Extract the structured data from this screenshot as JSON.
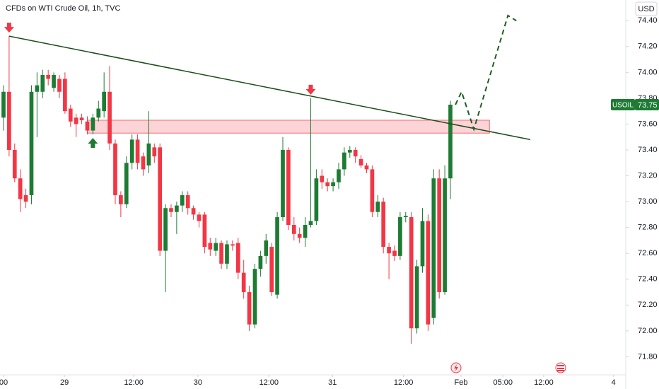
{
  "chart_data": {
    "type": "candlestick",
    "title": "CFDs on WTI Crude Oil, 1h, TVC",
    "currency": "USD",
    "symbol": "USOIL",
    "up_color": "#1e7b34",
    "down_color": "#f23645",
    "x": [
      0,
      1,
      2,
      3,
      4,
      5,
      6,
      7,
      8,
      9,
      10,
      11,
      12,
      13,
      14,
      15,
      16,
      17,
      18,
      19,
      20,
      21,
      22,
      23,
      24,
      25,
      26,
      27,
      28,
      29,
      30,
      31,
      32,
      33,
      34,
      35,
      36,
      37,
      38,
      39,
      40,
      41,
      42,
      43,
      44,
      45,
      46,
      47,
      48,
      49,
      50,
      51,
      52,
      53,
      54,
      55,
      56,
      57,
      58,
      59,
      60,
      61,
      62,
      63,
      64,
      65,
      66,
      67,
      68,
      69,
      70,
      71,
      72,
      73,
      74,
      75,
      76,
      77,
      78,
      79,
      80
    ],
    "open": [
      73.65,
      73.85,
      73.4,
      73.18,
      73.05,
      73.05,
      73.85,
      73.85,
      73.98,
      73.88,
      73.95,
      73.95,
      73.72,
      73.65,
      73.65,
      73.62,
      73.55,
      73.65,
      73.7,
      73.85,
      73.45,
      73.05,
      72.98,
      73.3,
      73.48,
      73.35,
      73.28,
      73.42,
      73.42,
      72.62,
      72.95,
      72.92,
      72.97,
      73.05,
      72.95,
      72.9,
      72.9,
      72.68,
      72.62,
      72.68,
      72.52,
      72.67,
      72.68,
      72.45,
      72.3,
      72.05,
      72.48,
      72.58,
      72.65,
      72.28,
      72.88,
      73.4,
      72.82,
      72.75,
      72.72,
      72.82,
      72.85,
      73.2,
      73.15,
      73.12,
      73.15,
      73.25,
      73.38,
      73.4,
      73.33,
      73.28,
      73.25,
      72.92,
      73.0,
      72.65,
      72.62,
      72.58,
      72.88,
      72.88,
      72.02,
      72.5,
      72.85,
      72.1,
      73.18,
      72.3,
      73.18
    ],
    "high": [
      73.9,
      74.28,
      73.45,
      73.25,
      73.1,
      73.9,
      74.0,
      74.02,
      74.02,
      74.0,
      73.98,
      74.0,
      73.75,
      73.68,
      73.68,
      73.66,
      73.68,
      73.78,
      74.0,
      74.05,
      73.48,
      73.08,
      73.35,
      73.52,
      73.52,
      73.38,
      73.7,
      73.45,
      73.45,
      72.98,
      72.98,
      73.0,
      73.08,
      73.08,
      72.97,
      72.92,
      72.92,
      72.72,
      72.72,
      72.7,
      72.7,
      72.7,
      72.72,
      72.55,
      72.35,
      72.52,
      72.62,
      72.75,
      72.68,
      72.92,
      73.5,
      73.42,
      72.88,
      72.8,
      72.88,
      73.8,
      73.25,
      73.25,
      73.18,
      73.18,
      73.3,
      73.42,
      73.43,
      73.42,
      73.36,
      73.3,
      73.28,
      73.05,
      73.03,
      72.68,
      72.66,
      72.92,
      72.92,
      72.92,
      72.55,
      72.95,
      72.9,
      73.25,
      73.25,
      73.28,
      73.78
    ],
    "low": [
      73.55,
      73.35,
      73.15,
      72.92,
      72.95,
      72.98,
      73.5,
      73.8,
      73.9,
      73.85,
      73.8,
      73.68,
      73.58,
      73.5,
      73.6,
      73.52,
      73.52,
      73.62,
      73.65,
      73.4,
      72.98,
      72.88,
      72.95,
      73.25,
      73.25,
      73.2,
      73.22,
      73.3,
      72.58,
      72.3,
      72.88,
      72.75,
      72.92,
      72.9,
      72.86,
      72.8,
      72.6,
      72.58,
      72.58,
      72.48,
      72.48,
      72.62,
      72.4,
      72.25,
      72.0,
      72.02,
      72.42,
      72.52,
      72.27,
      72.25,
      72.85,
      72.78,
      72.7,
      72.68,
      72.65,
      72.8,
      72.82,
      73.1,
      73.08,
      73.08,
      73.1,
      73.2,
      73.34,
      73.3,
      73.26,
      73.22,
      72.88,
      72.88,
      72.6,
      72.4,
      72.54,
      72.55,
      72.84,
      71.9,
      71.98,
      72.45,
      72.0,
      72.05,
      72.25,
      72.28,
      73.02
    ],
    "close": [
      73.85,
      73.4,
      73.18,
      73.02,
      73.0,
      73.85,
      73.9,
      73.98,
      73.95,
      73.98,
      73.85,
      73.7,
      73.62,
      73.6,
      73.63,
      73.55,
      73.65,
      73.72,
      73.85,
      73.45,
      73.05,
      72.98,
      73.3,
      73.48,
      73.3,
      73.25,
      73.45,
      73.35,
      72.62,
      72.95,
      72.92,
      72.97,
      73.05,
      72.95,
      72.9,
      72.85,
      72.65,
      72.63,
      72.68,
      72.52,
      72.67,
      72.66,
      72.45,
      72.3,
      72.05,
      72.48,
      72.58,
      72.7,
      72.3,
      72.88,
      73.4,
      72.82,
      72.75,
      72.72,
      72.82,
      72.85,
      73.18,
      73.15,
      73.12,
      73.15,
      73.25,
      73.38,
      73.4,
      73.35,
      73.28,
      73.25,
      72.92,
      73.0,
      72.65,
      72.6,
      72.58,
      72.88,
      72.89,
      72.02,
      72.5,
      72.85,
      72.05,
      73.18,
      72.3,
      73.18,
      73.75
    ],
    "xlim": [
      -0.63,
      110.76
    ],
    "ylim": [
      71.66,
      74.56
    ],
    "xticks": [
      {
        "value": 0,
        "label": "00"
      },
      {
        "value": 10.9,
        "label": "29"
      },
      {
        "value": 23.3,
        "label": "12:00"
      },
      {
        "value": 34.8,
        "label": "30"
      },
      {
        "value": 47.5,
        "label": "12:00"
      },
      {
        "value": 58.9,
        "label": "31"
      },
      {
        "value": 71.6,
        "label": "12:00"
      },
      {
        "value": 81.9,
        "label": "Feb"
      },
      {
        "value": 89.4,
        "label": "05:00"
      },
      {
        "value": 96.7,
        "label": "12:00"
      },
      {
        "value": 109.2,
        "label": "4"
      }
    ],
    "yticks": [
      {
        "value": 71.8,
        "label": "71.80"
      },
      {
        "value": 72.0,
        "label": "72.00"
      },
      {
        "value": 72.2,
        "label": "72.20"
      },
      {
        "value": 72.4,
        "label": "72.40"
      },
      {
        "value": 72.6,
        "label": "72.60"
      },
      {
        "value": 72.8,
        "label": "72.80"
      },
      {
        "value": 73.0,
        "label": "73.00"
      },
      {
        "value": 73.2,
        "label": "73.20"
      },
      {
        "value": 73.4,
        "label": "73.40"
      },
      {
        "value": 73.6,
        "label": "73.60"
      },
      {
        "value": 73.8,
        "label": "73.80"
      },
      {
        "value": 74.0,
        "label": "74.00"
      },
      {
        "value": 74.2,
        "label": "74.20"
      },
      {
        "value": 74.4,
        "label": "74.40"
      }
    ],
    "trendline": {
      "x": [
        1,
        94.3
      ],
      "y": [
        74.28,
        73.48
      ],
      "color": "#1b4d1b"
    },
    "zone": {
      "x": [
        15,
        87
      ],
      "y": [
        73.53,
        73.63
      ],
      "color": "#f23645"
    },
    "projection": {
      "x": [
        80.9,
        82,
        84.2,
        90.3,
        91.8
      ],
      "y": [
        73.75,
        73.85,
        73.56,
        74.44,
        74.4
      ],
      "color": "#1b5e20"
    },
    "markers": [
      {
        "x": 1,
        "y": 74.28,
        "direction": "down",
        "color": "#f23645"
      },
      {
        "x": 55,
        "y": 73.8,
        "direction": "down",
        "color": "#f23645"
      },
      {
        "x": 16,
        "y": 73.52,
        "direction": "up",
        "color": "#1e7b34"
      }
    ]
  }
}
